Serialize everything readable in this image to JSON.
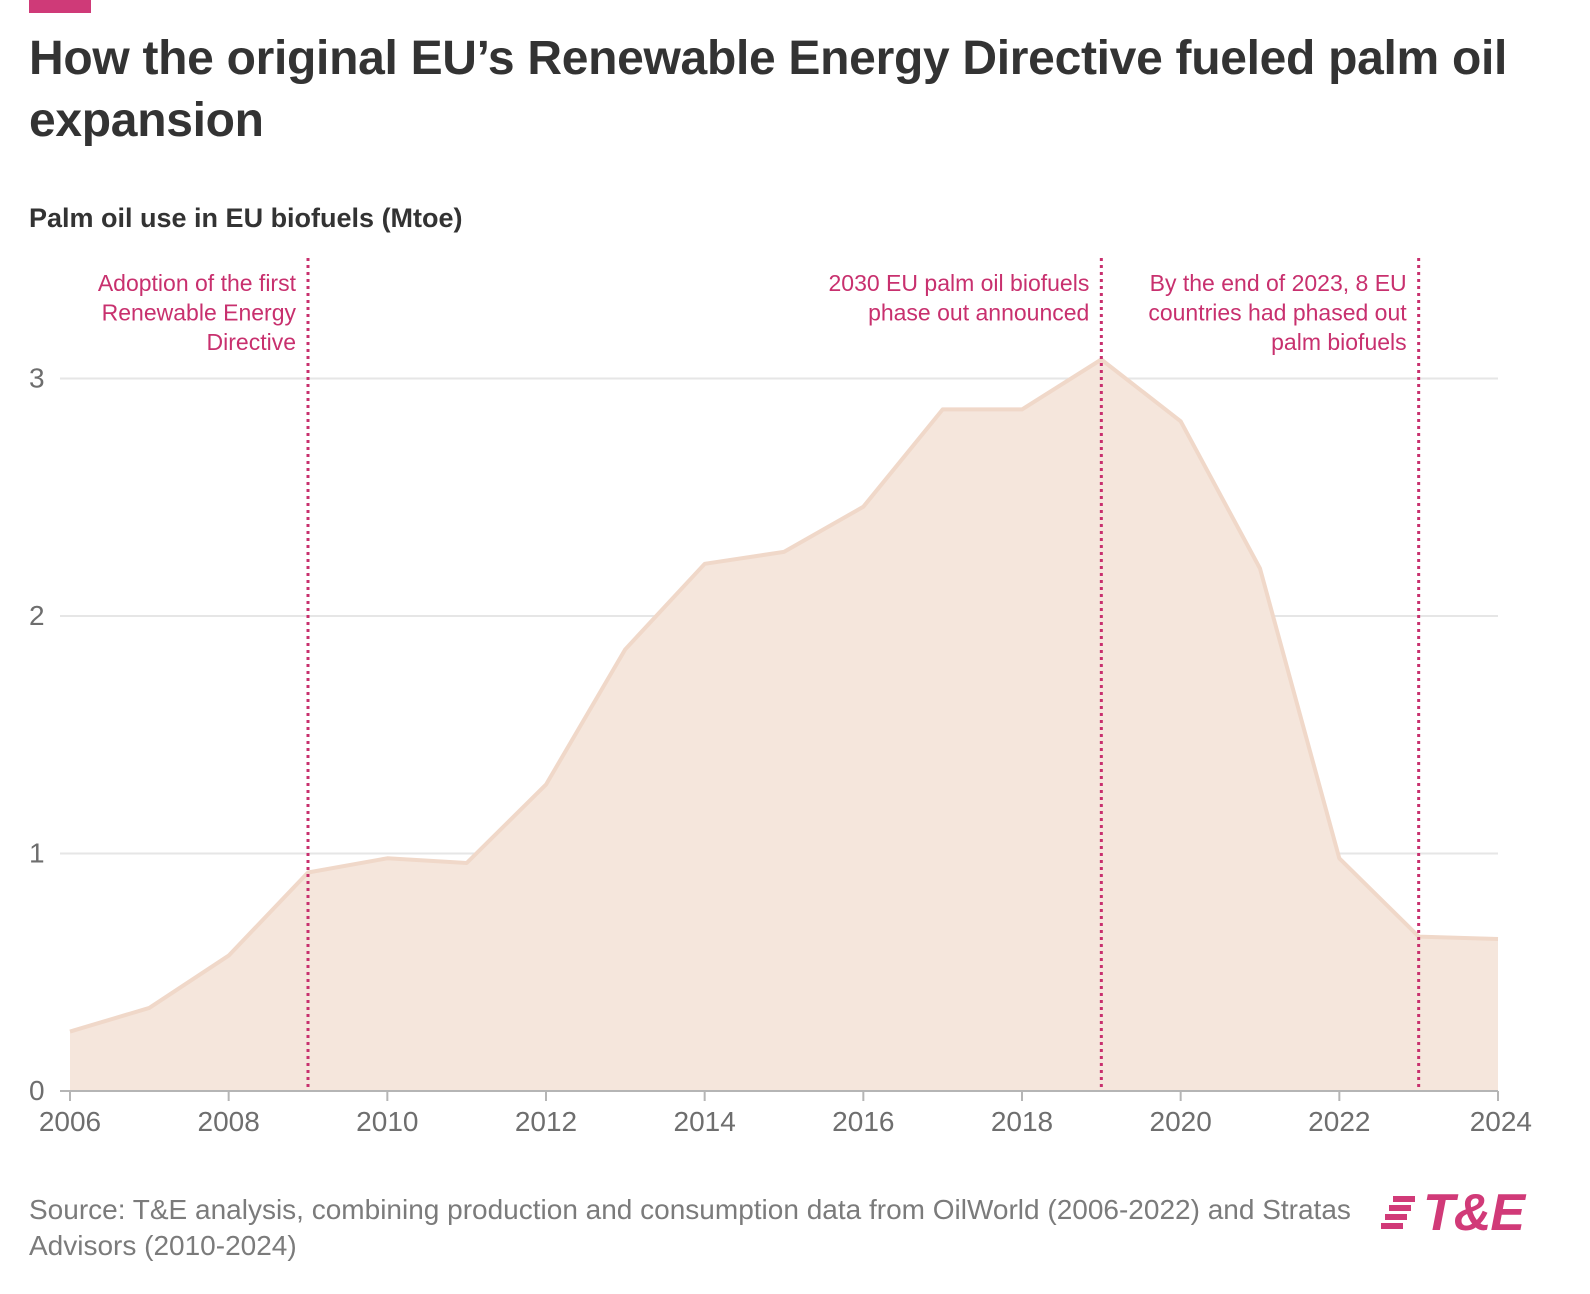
{
  "header": {
    "title": "How the original EU’s Renewable Energy Directive fueled palm oil expansion",
    "subtitle": "Palm oil use in EU biofuels (Mtoe)"
  },
  "footer": {
    "source": "Source: T&E analysis, combining production and consumption data from OilWorld (2006-2022) and Stratas Advisors (2010-2024)",
    "logo_text": "T&E"
  },
  "colors": {
    "accent": "#cf3a78",
    "area_fill": "#f5e6dc",
    "area_stroke": "#f0d8c9",
    "annotation": "#c8306e",
    "grid": "#e6e6e6",
    "axis_text": "#6e6e6e"
  },
  "chart_data": {
    "type": "area",
    "title": "How the original EU’s Renewable Energy Directive fueled palm oil expansion",
    "ylabel": "Palm oil use in EU biofuels (Mtoe)",
    "xlabel": "",
    "xlim": [
      2006,
      2024
    ],
    "ylim": [
      0,
      3.5
    ],
    "x_ticks": [
      "2006",
      "2008",
      "2010",
      "2012",
      "2014",
      "2016",
      "2018",
      "2020",
      "2022",
      "2024"
    ],
    "y_ticks": [
      "0",
      "1",
      "2",
      "3"
    ],
    "grid": true,
    "series": [
      {
        "name": "Palm oil use in EU biofuels (Mtoe)",
        "x": [
          2006,
          2007,
          2008,
          2009,
          2010,
          2011,
          2012,
          2013,
          2014,
          2015,
          2016,
          2017,
          2018,
          2019,
          2020,
          2021,
          2022,
          2023,
          2024
        ],
        "values": [
          0.25,
          0.35,
          0.57,
          0.92,
          0.98,
          0.96,
          1.29,
          1.86,
          2.22,
          2.27,
          2.46,
          2.87,
          2.87,
          3.08,
          2.82,
          2.2,
          0.98,
          0.65,
          0.64
        ]
      }
    ],
    "annotations": [
      {
        "x": 2009,
        "lines": [
          "Adoption of the first",
          "Renewable Energy",
          "Directive"
        ]
      },
      {
        "x": 2019,
        "lines": [
          "2030 EU palm oil biofuels",
          "phase out announced"
        ]
      },
      {
        "x": 2023,
        "lines": [
          "By the end of 2023, 8 EU",
          "countries had phased out",
          "palm biofuels"
        ]
      }
    ]
  }
}
